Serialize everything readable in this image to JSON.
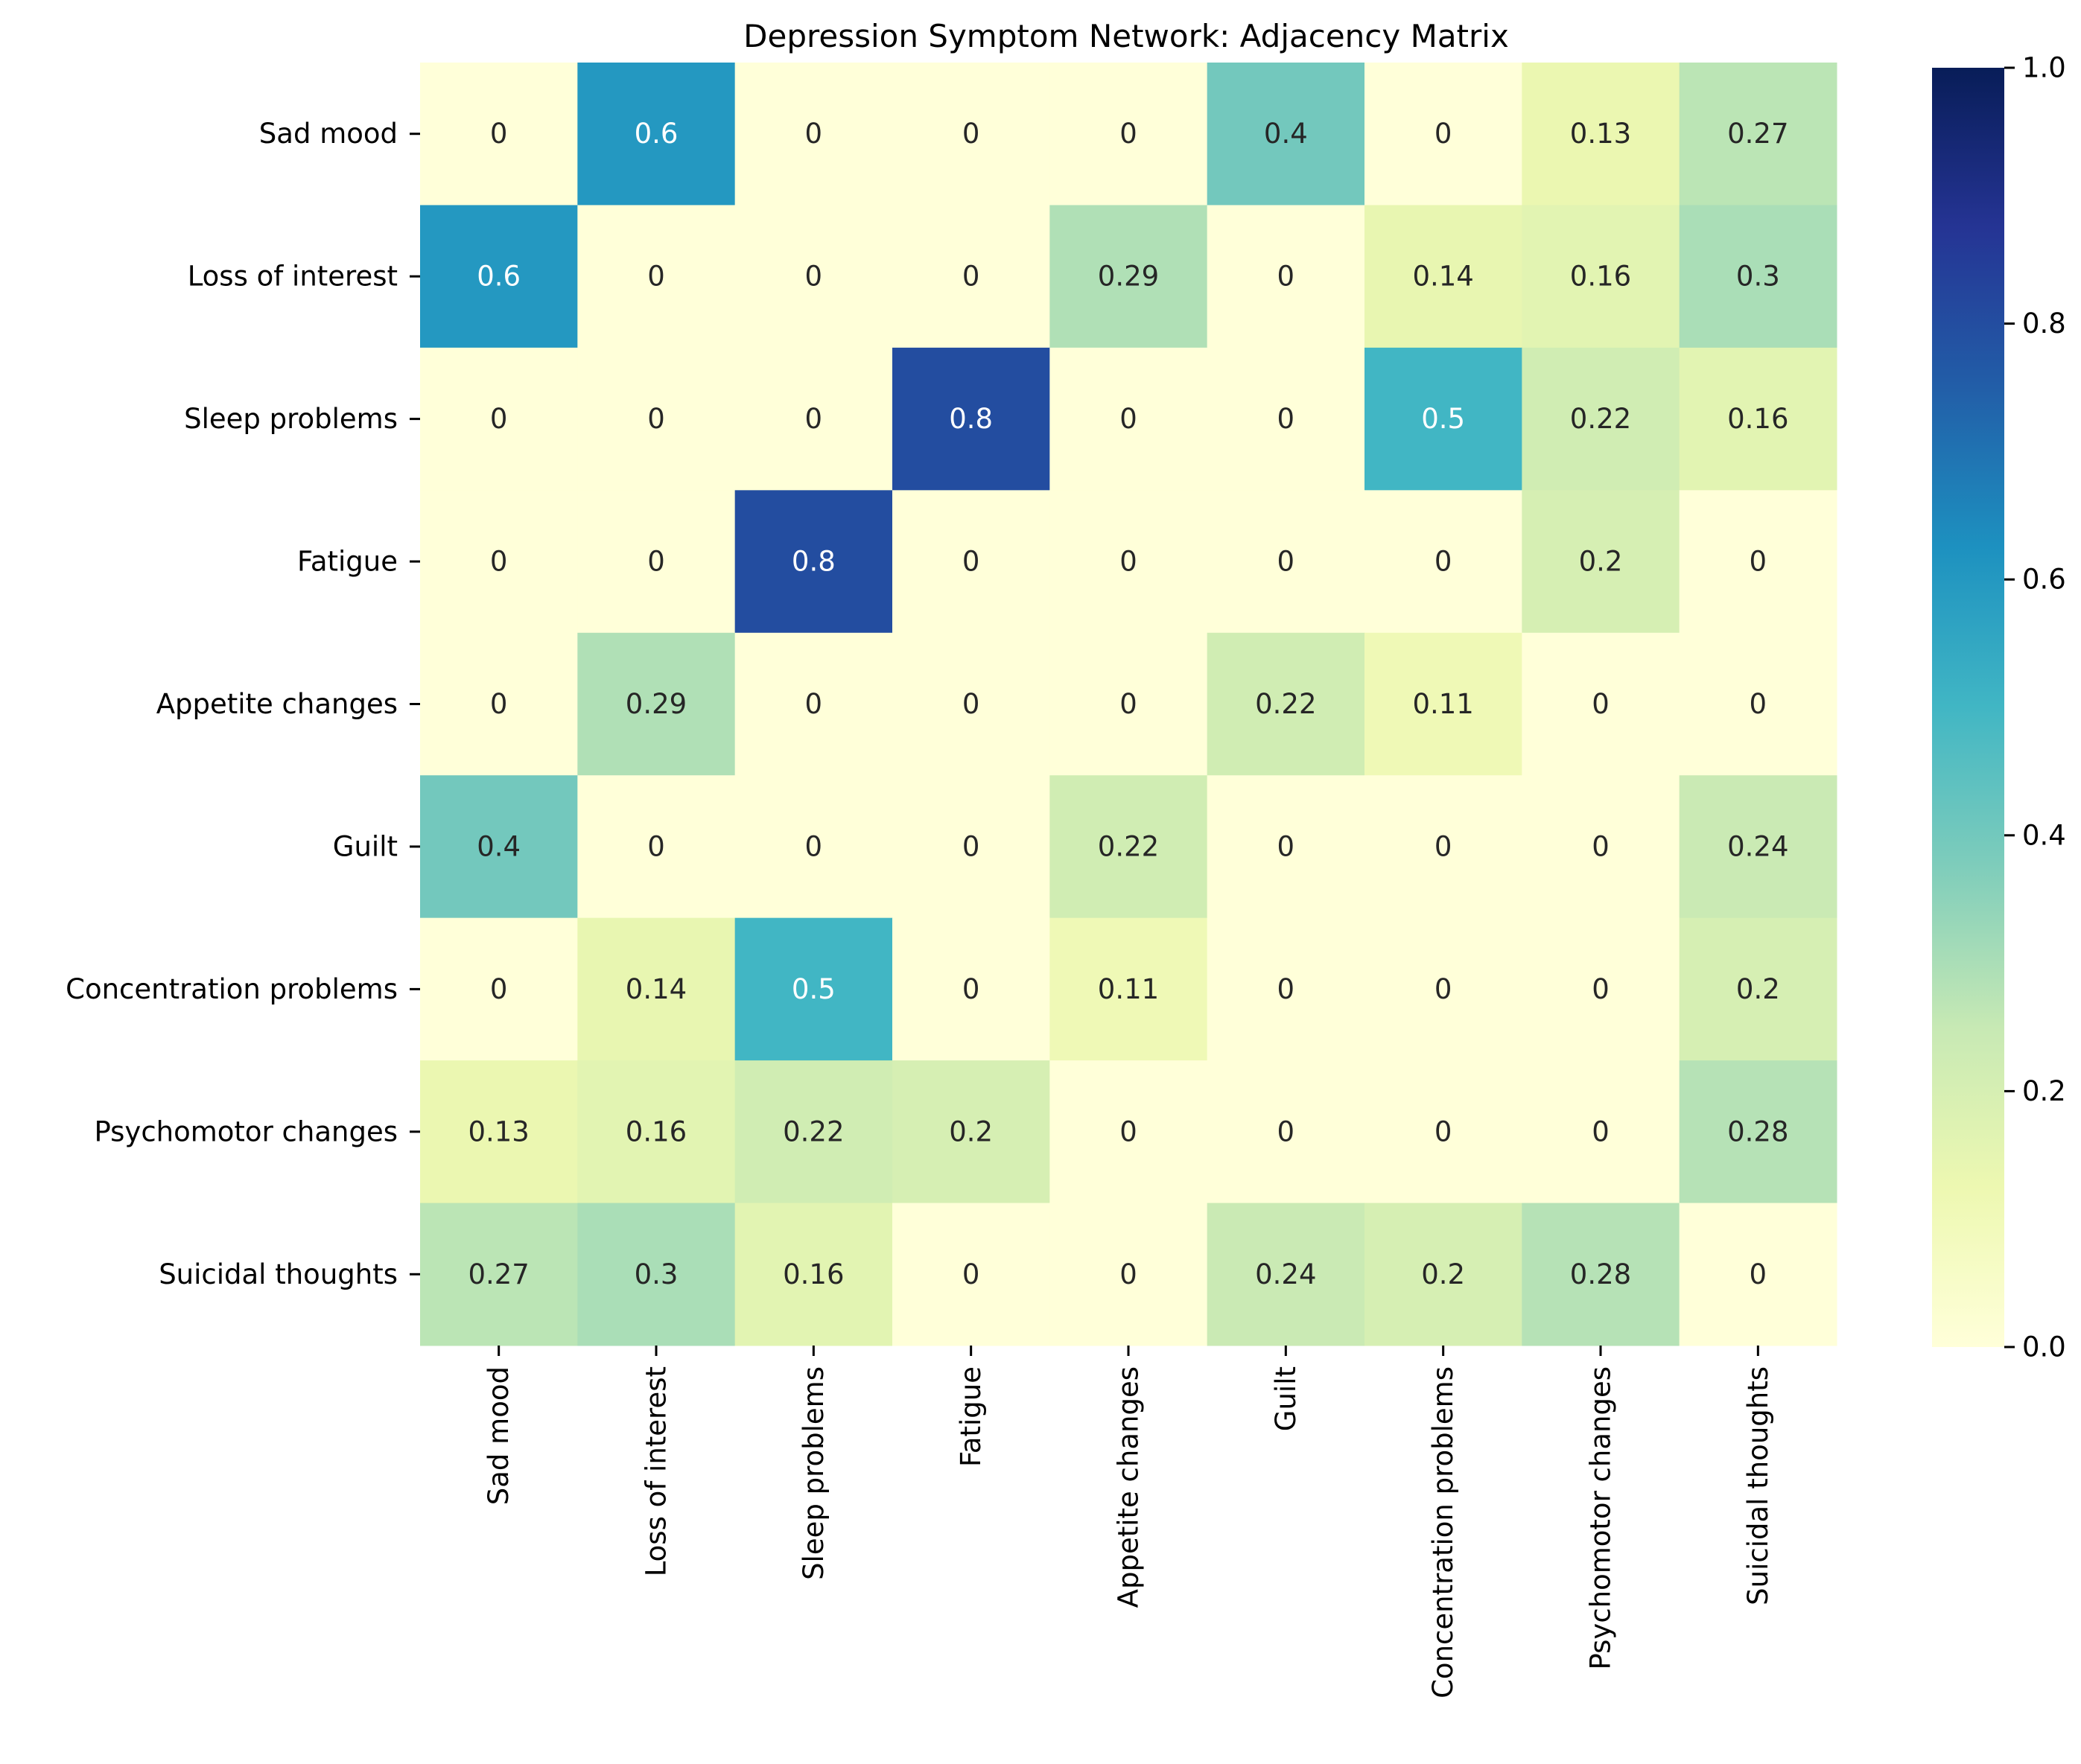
{
  "chart_data": {
    "type": "heatmap",
    "title": "Depression Symptom Network: Adjacency Matrix",
    "row_labels": [
      "Sad mood",
      "Loss of interest",
      "Sleep problems",
      "Fatigue",
      "Appetite changes",
      "Guilt",
      "Concentration problems",
      "Psychomotor changes",
      "Suicidal thoughts"
    ],
    "col_labels": [
      "Sad mood",
      "Loss of interest",
      "Sleep problems",
      "Fatigue",
      "Appetite changes",
      "Guilt",
      "Concentration problems",
      "Psychomotor changes",
      "Suicidal thoughts"
    ],
    "matrix": [
      [
        0,
        0.6,
        0,
        0,
        0,
        0.4,
        0,
        0.13,
        0.27
      ],
      [
        0.6,
        0,
        0,
        0,
        0.29,
        0,
        0.14,
        0.16,
        0.3
      ],
      [
        0,
        0,
        0,
        0.8,
        0,
        0,
        0.5,
        0.22,
        0.16
      ],
      [
        0,
        0,
        0.8,
        0,
        0,
        0,
        0,
        0.2,
        0
      ],
      [
        0,
        0.29,
        0,
        0,
        0,
        0.22,
        0.11,
        0,
        0
      ],
      [
        0.4,
        0,
        0,
        0,
        0.22,
        0,
        0,
        0,
        0.24
      ],
      [
        0,
        0.14,
        0.5,
        0,
        0.11,
        0,
        0,
        0,
        0.2
      ],
      [
        0.13,
        0.16,
        0.22,
        0.2,
        0,
        0,
        0,
        0,
        0.28
      ],
      [
        0.27,
        0.3,
        0.16,
        0,
        0,
        0.24,
        0.2,
        0.28,
        0
      ]
    ],
    "vmin": 0,
    "vmax": 1,
    "colormap": "YlGnBu",
    "colorbar_ticks": [
      "0.0",
      "0.2",
      "0.4",
      "0.6",
      "0.8",
      "1.0"
    ],
    "colors": {
      "annotation_dark": "#262626",
      "annotation_light": "#ffffff",
      "colormap_stops": [
        "#ffffd9",
        "#edf8b1",
        "#c7e9b4",
        "#7fcdbb",
        "#41b6c4",
        "#1d91c0",
        "#225ea8",
        "#253494",
        "#081d58"
      ]
    }
  }
}
